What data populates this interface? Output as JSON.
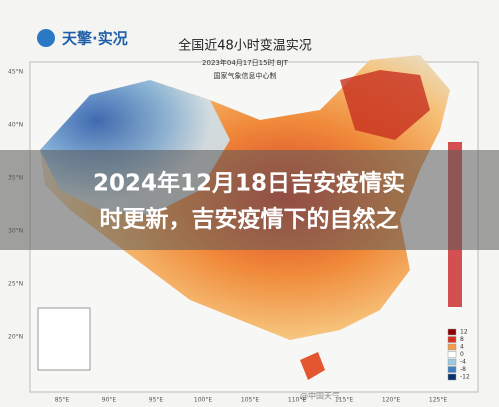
{
  "header": {
    "logo": "天擎·实况",
    "title": "全国近48小时变温实况",
    "time": "2023年04月17日15时 BJT",
    "source": "国家气象信息中心制"
  },
  "overlay": {
    "lines": [
      "2024年12月18日吉安疫情实",
      "时更新，吉安疫情下的自然之"
    ]
  },
  "latitude_labels": [
    "45°N",
    "40°N",
    "35°N",
    "30°N",
    "25°N",
    "20°N"
  ],
  "longitude_labels": [
    "85°E",
    "90°E",
    "95°E",
    "100°E",
    "105°E",
    "110°E",
    "115°E",
    "120°E",
    "125°E"
  ],
  "legend": {
    "labels": [
      "12",
      "8",
      "4",
      "0",
      "-4",
      "-8",
      "-12"
    ]
  },
  "watermark": "@中国天气"
}
